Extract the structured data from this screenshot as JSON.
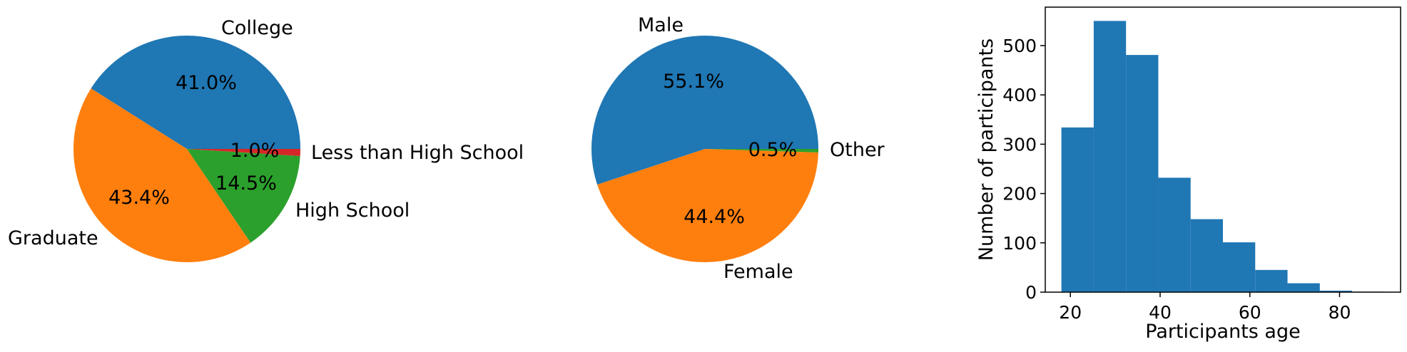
{
  "colors": {
    "blue": "#1f77b4",
    "orange": "#ff7f0e",
    "green": "#2ca02c",
    "red": "#d62728"
  },
  "chart_data": [
    {
      "type": "pie",
      "labels": [
        "College",
        "Graduate",
        "High School",
        "Less than High School"
      ],
      "values": [
        41.0,
        43.4,
        14.5,
        1.0
      ],
      "pct_labels": [
        "41.0%",
        "43.4%",
        "14.5%",
        "1.0%"
      ],
      "colors": [
        "#1f77b4",
        "#ff7f0e",
        "#2ca02c",
        "#d62728"
      ],
      "start_angle_deg": 0,
      "direction": "counterclockwise"
    },
    {
      "type": "pie",
      "labels": [
        "Male",
        "Female",
        "Other"
      ],
      "values": [
        55.1,
        44.4,
        0.5
      ],
      "pct_labels": [
        "55.1%",
        "44.4%",
        "0.5%"
      ],
      "colors": [
        "#1f77b4",
        "#ff7f0e",
        "#2ca02c"
      ],
      "start_angle_deg": 0,
      "direction": "counterclockwise"
    },
    {
      "type": "bar",
      "subtype": "histogram",
      "bin_edges": [
        18,
        25.2,
        32.4,
        39.6,
        46.8,
        54,
        61.2,
        68.4,
        75.6,
        82.8,
        90
      ],
      "values": [
        334,
        550,
        481,
        232,
        148,
        101,
        45,
        18,
        3,
        1
      ],
      "color": "#1f77b4",
      "xlabel": "Participants age",
      "ylabel": "Number of participants",
      "xlim": [
        14.4,
        93.6
      ],
      "ylim": [
        0,
        578
      ],
      "xticks": [
        20,
        40,
        60,
        80
      ],
      "yticks": [
        0,
        100,
        200,
        300,
        400,
        500
      ],
      "grid": false
    }
  ]
}
